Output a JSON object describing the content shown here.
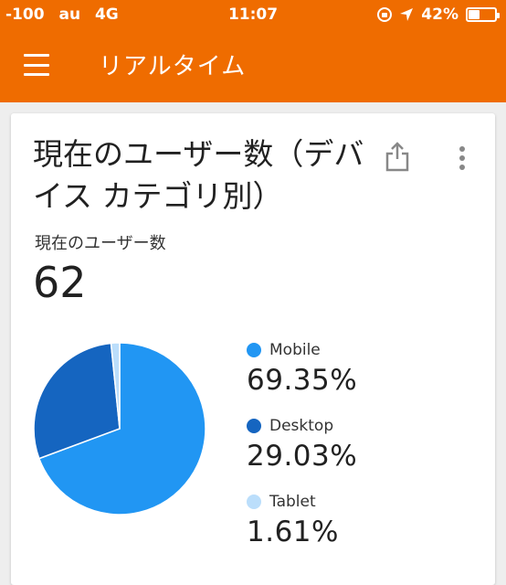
{
  "status_bar": {
    "signal": "-100",
    "carrier": "au",
    "network": "4G",
    "time": "11:07",
    "battery_percent": "42%",
    "battery_level": 0.42
  },
  "app_bar": {
    "title": "リアルタイム",
    "menu_icon": "hamburger-menu-icon",
    "background_color": "#ef6c00"
  },
  "card": {
    "title": "現在のユーザー数（デバイス カテゴリ別）",
    "share_icon": "share-icon",
    "more_icon": "more-vert-icon",
    "metric_label": "現在のユーザー数",
    "metric_value": "62"
  },
  "chart_data": {
    "type": "pie",
    "title": "",
    "categories": [
      "Mobile",
      "Desktop",
      "Tablet"
    ],
    "values": [
      69.35,
      29.03,
      1.61
    ],
    "labels": [
      "69.35%",
      "29.03%",
      "1.61%"
    ],
    "colors": [
      "#2196f3",
      "#1565c0",
      "#bbdefb"
    ],
    "legend_position": "right"
  }
}
